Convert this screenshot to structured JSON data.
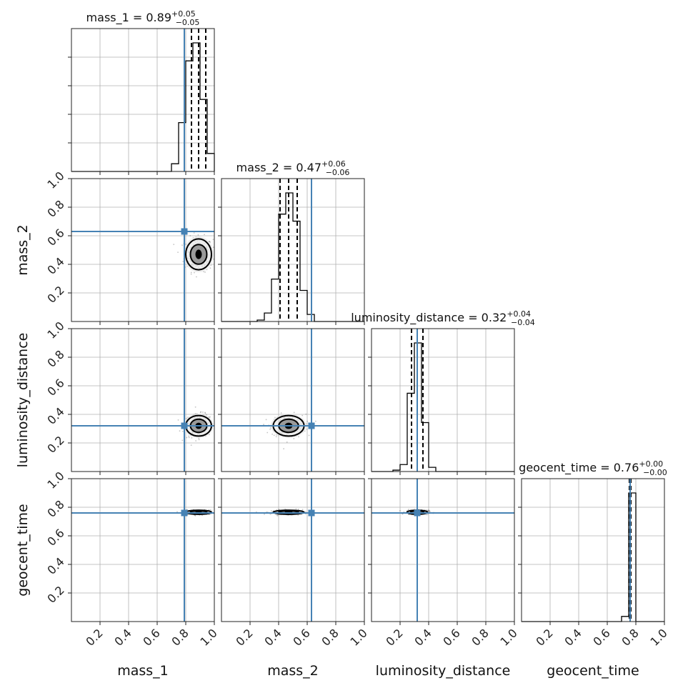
{
  "chart_data": {
    "type": "corner",
    "parameters": [
      "mass_1",
      "mass_2",
      "luminosity_distance",
      "geocent_time"
    ],
    "axis_labels": [
      "mass_1",
      "mass_2",
      "luminosity_distance",
      "geocent_time"
    ],
    "axis_range": [
      0,
      1
    ],
    "tick_labels": [
      "0.2",
      "0.4",
      "0.6",
      "0.8",
      "1.0"
    ],
    "grid": true,
    "truth_color": "#4682b4",
    "titles": [
      {
        "param": "mass_1",
        "text": "mass_1 = 0.89",
        "sup": "+0.05",
        "sub": "−0.05"
      },
      {
        "param": "mass_2",
        "text": "mass_2 = 0.47",
        "sup": "+0.06",
        "sub": "−0.06"
      },
      {
        "param": "luminosity_distance",
        "text": "luminosity_distance = 0.32",
        "sup": "+0.04",
        "sub": "−0.04"
      },
      {
        "param": "geocent_time",
        "text": "geocent_time = 0.76",
        "sup": "+0.00",
        "sub": "−0.00"
      }
    ],
    "truths": {
      "mass_1": 0.79,
      "mass_2": 0.63,
      "luminosity_distance": 0.32,
      "geocent_time": 0.76
    },
    "quantiles": {
      "mass_1": [
        0.84,
        0.89,
        0.94
      ],
      "mass_2": [
        0.41,
        0.47,
        0.53
      ],
      "luminosity_distance": [
        0.28,
        0.32,
        0.36
      ],
      "geocent_time": [
        0.755,
        0.76,
        0.765
      ]
    },
    "histograms": {
      "mass_1": {
        "edges": [
          0.7,
          0.75,
          0.8,
          0.85,
          0.9,
          0.95,
          1.0
        ],
        "counts": [
          6,
          38,
          86,
          100,
          56,
          14
        ]
      },
      "mass_2": {
        "edges": [
          0.25,
          0.3,
          0.35,
          0.4,
          0.45,
          0.5,
          0.55,
          0.6,
          0.65
        ],
        "counts": [
          1,
          6,
          30,
          76,
          91,
          71,
          22,
          5
        ]
      },
      "luminosity_distance": {
        "edges": [
          0.15,
          0.2,
          0.25,
          0.3,
          0.35,
          0.4,
          0.45
        ],
        "counts": [
          1,
          5,
          56,
          92,
          35,
          3
        ]
      },
      "geocent_time": {
        "edges": [
          0.7,
          0.75,
          0.8
        ],
        "counts": [
          4,
          100
        ]
      }
    },
    "joint_centers": {
      "mass_1|mass_2": {
        "x": 0.89,
        "y": 0.47,
        "sx": 0.05,
        "sy": 0.06
      },
      "mass_1|luminosity_distance": {
        "x": 0.89,
        "y": 0.32,
        "sx": 0.05,
        "sy": 0.04
      },
      "mass_2|luminosity_distance": {
        "x": 0.47,
        "y": 0.32,
        "sx": 0.06,
        "sy": 0.04
      },
      "mass_1|geocent_time": {
        "x": 0.89,
        "y": 0.765,
        "sx": 0.05,
        "sy": 0.008
      },
      "mass_2|geocent_time": {
        "x": 0.47,
        "y": 0.765,
        "sx": 0.06,
        "sy": 0.008
      },
      "luminosity_distance|geocent_time": {
        "x": 0.32,
        "y": 0.765,
        "sx": 0.04,
        "sy": 0.008
      }
    }
  }
}
